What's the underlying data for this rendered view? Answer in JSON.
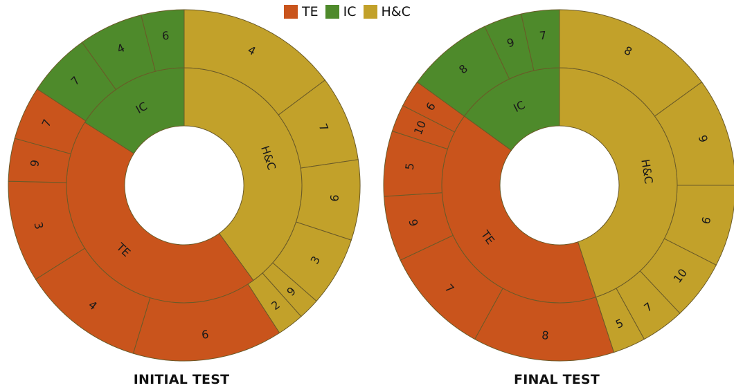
{
  "colors": {
    "TE": "#c9541c",
    "IC": "#4e8a2b",
    "H&C": "#c2a12a",
    "stroke": "#6a5a28"
  },
  "legend": [
    {
      "key": "TE",
      "label": "TE"
    },
    {
      "key": "IC",
      "label": "IC"
    },
    {
      "key": "H&C",
      "label": "H&C"
    }
  ],
  "chart_data": [
    {
      "type": "sunburst",
      "title": "INITIAL TEST",
      "inner": [
        {
          "label": "H&C",
          "key": "H&C",
          "value": 40
        },
        {
          "label": "TE",
          "key": "TE",
          "value": 44
        },
        {
          "label": "IC",
          "key": "IC",
          "value": 16
        }
      ],
      "outer": [
        {
          "label": "4",
          "key": "H&C",
          "value": 15
        },
        {
          "label": "7",
          "key": "H&C",
          "value": 8
        },
        {
          "label": "6",
          "key": "H&C",
          "value": 7.5
        },
        {
          "label": "3",
          "key": "H&C",
          "value": 6.5
        },
        {
          "label": "9",
          "key": "H&C",
          "value": 2
        },
        {
          "label": "2",
          "key": "H&C",
          "value": 2.5
        },
        {
          "label": "6",
          "key": "TE",
          "value": 14
        },
        {
          "label": "4",
          "key": "TE",
          "value": 11.5
        },
        {
          "label": "3",
          "key": "TE",
          "value": 9.5
        },
        {
          "label": "9",
          "key": "TE",
          "value": 4
        },
        {
          "label": "7",
          "key": "TE",
          "value": 5
        },
        {
          "label": "7",
          "key": "IC",
          "value": 6
        },
        {
          "label": "4",
          "key": "IC",
          "value": 6
        },
        {
          "label": "6",
          "key": "IC",
          "value": 4
        }
      ]
    },
    {
      "type": "sunburst",
      "title": "FINAL TEST",
      "inner": [
        {
          "label": "H&C",
          "key": "H&C",
          "value": 45
        },
        {
          "label": "TE",
          "key": "TE",
          "value": 40
        },
        {
          "label": "IC",
          "key": "IC",
          "value": 15
        }
      ],
      "outer": [
        {
          "label": "8",
          "key": "H&C",
          "value": 15
        },
        {
          "label": "9",
          "key": "H&C",
          "value": 10
        },
        {
          "label": "6",
          "key": "H&C",
          "value": 7.5
        },
        {
          "label": "10",
          "key": "H&C",
          "value": 5.5
        },
        {
          "label": "7",
          "key": "H&C",
          "value": 4
        },
        {
          "label": "5",
          "key": "H&C",
          "value": 3
        },
        {
          "label": "8",
          "key": "TE",
          "value": 13
        },
        {
          "label": "7",
          "key": "TE",
          "value": 10
        },
        {
          "label": "9",
          "key": "TE",
          "value": 6
        },
        {
          "label": "5",
          "key": "TE",
          "value": 6
        },
        {
          "label": "10",
          "key": "TE",
          "value": 2.5
        },
        {
          "label": "6",
          "key": "TE",
          "value": 2.5
        },
        {
          "label": "8",
          "key": "IC",
          "value": 8
        },
        {
          "label": "9",
          "key": "IC",
          "value": 3.5
        },
        {
          "label": "7",
          "key": "IC",
          "value": 3.5
        }
      ]
    }
  ]
}
